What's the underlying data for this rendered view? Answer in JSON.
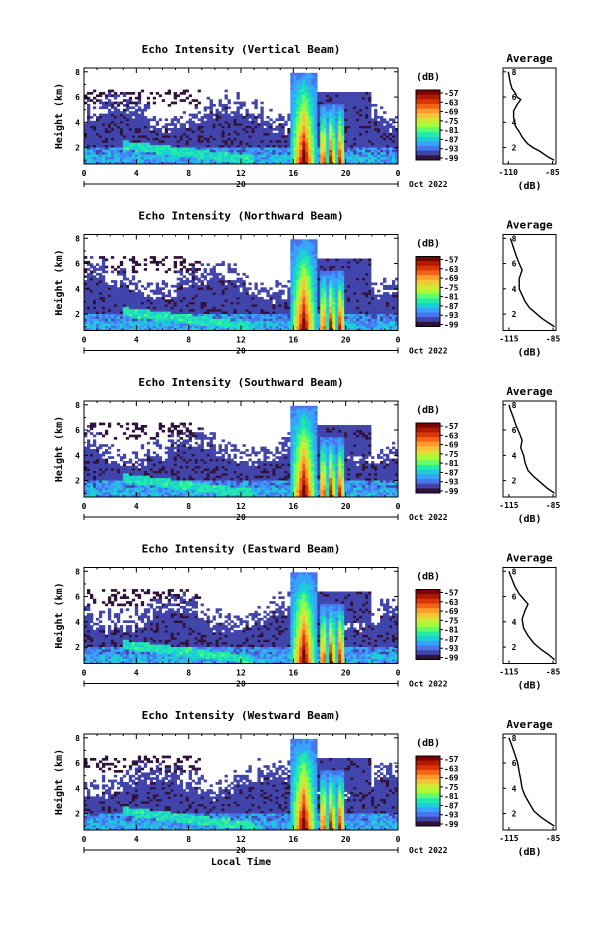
{
  "chart_data": [
    {
      "type": "heatmap",
      "title": "Echo Intensity (Vertical Beam)",
      "ylabel": "Height (km)",
      "yticks": [
        "2",
        "4",
        "6",
        "8"
      ],
      "ylim": [
        0.7,
        8.3
      ],
      "xlim": [
        0,
        24
      ],
      "xticks": [
        "0",
        "4",
        "8",
        "12",
        "16",
        "20",
        "0"
      ],
      "day_label": "20",
      "date_label": "Oct 2022",
      "colorbar": {
        "unit": "(dB)",
        "ticks": [
          "-57",
          "-63",
          "-69",
          "-75",
          "-81",
          "-87",
          "-93",
          "-99"
        ]
      },
      "average_profile": {
        "title": "Average",
        "xlabel": "(dB)",
        "xticks": [
          "-110",
          "-85"
        ],
        "xlim": [
          -113,
          -83
        ],
        "points": [
          [
            -84,
            1.0
          ],
          [
            -88,
            1.3
          ],
          [
            -92,
            1.7
          ],
          [
            -96,
            2.0
          ],
          [
            -99,
            2.3
          ],
          [
            -102,
            2.8
          ],
          [
            -104,
            3.3
          ],
          [
            -106,
            3.7
          ],
          [
            -107,
            4.4
          ],
          [
            -107,
            4.9
          ],
          [
            -105,
            5.4
          ],
          [
            -103,
            5.8
          ],
          [
            -105,
            6.0
          ],
          [
            -106,
            6.3
          ],
          [
            -108,
            6.7
          ],
          [
            -109,
            7.2
          ],
          [
            -110,
            8.0
          ]
        ]
      }
    },
    {
      "type": "heatmap",
      "title": "Echo Intensity (Northward Beam)",
      "ylabel": "Height (km)",
      "yticks": [
        "2",
        "4",
        "6",
        "8"
      ],
      "ylim": [
        0.7,
        8.3
      ],
      "xlim": [
        0,
        24
      ],
      "xticks": [
        "0",
        "4",
        "8",
        "12",
        "16",
        "20",
        "0"
      ],
      "day_label": "20",
      "date_label": "Oct 2022",
      "colorbar": {
        "unit": "(dB)",
        "ticks": [
          "-57",
          "-63",
          "-69",
          "-75",
          "-81",
          "-87",
          "-93",
          "-99"
        ]
      },
      "average_profile": {
        "title": "Average",
        "xlabel": "(dB)",
        "xticks": [
          "-115",
          "-85"
        ],
        "xlim": [
          -119,
          -83
        ],
        "points": [
          [
            -84,
            1.0
          ],
          [
            -88,
            1.3
          ],
          [
            -93,
            1.7
          ],
          [
            -97,
            2.1
          ],
          [
            -101,
            2.5
          ],
          [
            -104,
            3.0
          ],
          [
            -106,
            3.5
          ],
          [
            -108,
            4.0
          ],
          [
            -108,
            4.8
          ],
          [
            -106,
            5.5
          ],
          [
            -108,
            6.0
          ],
          [
            -110,
            6.6
          ],
          [
            -112,
            7.3
          ],
          [
            -114,
            8.0
          ]
        ]
      }
    },
    {
      "type": "heatmap",
      "title": "Echo Intensity (Southward Beam)",
      "ylabel": "Height (km)",
      "yticks": [
        "2",
        "4",
        "6",
        "8"
      ],
      "ylim": [
        0.7,
        8.3
      ],
      "xlim": [
        0,
        24
      ],
      "xticks": [
        "0",
        "4",
        "8",
        "12",
        "16",
        "20",
        "0"
      ],
      "day_label": "20",
      "date_label": "Oct 2022",
      "colorbar": {
        "unit": "(dB)",
        "ticks": [
          "-57",
          "-63",
          "-69",
          "-75",
          "-81",
          "-87",
          "-93",
          "-99"
        ]
      },
      "average_profile": {
        "title": "Average",
        "xlabel": "(dB)",
        "xticks": [
          "-115",
          "-85"
        ],
        "xlim": [
          -119,
          -83
        ],
        "points": [
          [
            -84,
            1.0
          ],
          [
            -89,
            1.4
          ],
          [
            -94,
            1.9
          ],
          [
            -98,
            2.3
          ],
          [
            -102,
            2.8
          ],
          [
            -104,
            3.4
          ],
          [
            -105,
            4.0
          ],
          [
            -107,
            4.6
          ],
          [
            -106,
            5.2
          ],
          [
            -108,
            5.8
          ],
          [
            -110,
            6.3
          ],
          [
            -112,
            7.0
          ],
          [
            -114,
            7.6
          ],
          [
            -115,
            8.0
          ]
        ]
      }
    },
    {
      "type": "heatmap",
      "title": "Echo Intensity (Eastward Beam)",
      "ylabel": "Height (km)",
      "yticks": [
        "2",
        "4",
        "6",
        "8"
      ],
      "ylim": [
        0.7,
        8.3
      ],
      "xlim": [
        0,
        24
      ],
      "xticks": [
        "0",
        "4",
        "8",
        "12",
        "16",
        "20",
        "0"
      ],
      "day_label": "20",
      "date_label": "Oct 2022",
      "colorbar": {
        "unit": "(dB)",
        "ticks": [
          "-57",
          "-63",
          "-69",
          "-75",
          "-81",
          "-87",
          "-93",
          "-99"
        ]
      },
      "average_profile": {
        "title": "Average",
        "xlabel": "(dB)",
        "xticks": [
          "-115",
          "-85"
        ],
        "xlim": [
          -119,
          -83
        ],
        "points": [
          [
            -84,
            1.0
          ],
          [
            -88,
            1.4
          ],
          [
            -93,
            1.8
          ],
          [
            -98,
            2.3
          ],
          [
            -102,
            2.9
          ],
          [
            -105,
            3.5
          ],
          [
            -106,
            4.2
          ],
          [
            -104,
            4.9
          ],
          [
            -102,
            5.4
          ],
          [
            -105,
            5.8
          ],
          [
            -108,
            6.2
          ],
          [
            -111,
            6.8
          ],
          [
            -113,
            7.4
          ],
          [
            -115,
            8.0
          ]
        ]
      }
    },
    {
      "type": "heatmap",
      "title": "Echo Intensity (Westward Beam)",
      "ylabel": "Height (km)",
      "yticks": [
        "2",
        "4",
        "6",
        "8"
      ],
      "ylim": [
        0.7,
        8.3
      ],
      "xlim": [
        0,
        24
      ],
      "xticks": [
        "0",
        "4",
        "8",
        "12",
        "16",
        "20",
        "0"
      ],
      "day_label": "20",
      "date_label": "Oct 2022",
      "xlabel": "Local Time",
      "colorbar": {
        "unit": "(dB)",
        "ticks": [
          "-57",
          "-63",
          "-69",
          "-75",
          "-81",
          "-87",
          "-93",
          "-99"
        ]
      },
      "average_profile": {
        "title": "Average",
        "xlabel": "(dB)",
        "xticks": [
          "-115",
          "-85"
        ],
        "xlim": [
          -119,
          -83
        ],
        "points": [
          [
            -84,
            1.0
          ],
          [
            -88,
            1.3
          ],
          [
            -93,
            1.7
          ],
          [
            -98,
            2.2
          ],
          [
            -101,
            2.8
          ],
          [
            -104,
            3.4
          ],
          [
            -106,
            4.0
          ],
          [
            -107,
            4.7
          ],
          [
            -108,
            5.3
          ],
          [
            -109,
            6.0
          ],
          [
            -111,
            6.7
          ],
          [
            -113,
            7.4
          ],
          [
            -115,
            8.0
          ]
        ]
      }
    }
  ],
  "colormap": [
    "#30123b",
    "#4145ab",
    "#4675ed",
    "#39a2fc",
    "#1bcfd4",
    "#24eca6",
    "#61fc6c",
    "#a4fc3b",
    "#d1e834",
    "#f3c63a",
    "#fe9b2d",
    "#f36315",
    "#d93806",
    "#b11901",
    "#7a0402"
  ]
}
